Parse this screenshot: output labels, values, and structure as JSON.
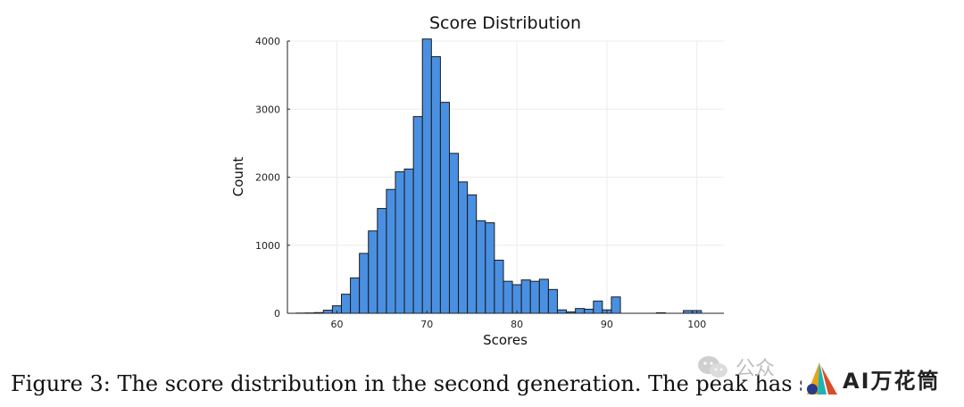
{
  "chart_data": {
    "type": "bar",
    "title": "Score Distribution",
    "xlabel": "Scores",
    "ylabel": "Count",
    "xlim": [
      54.5,
      103
    ],
    "ylim": [
      0,
      4000
    ],
    "xticks": [
      60,
      70,
      80,
      90,
      100
    ],
    "yticks": [
      0,
      1000,
      2000,
      3000,
      4000
    ],
    "grid": true,
    "bar_color": "#4a90e2",
    "x": [
      56,
      57,
      58,
      59,
      60,
      61,
      62,
      63,
      64,
      65,
      66,
      67,
      68,
      69,
      70,
      71,
      72,
      73,
      74,
      75,
      76,
      77,
      78,
      79,
      80,
      81,
      82,
      83,
      84,
      85,
      86,
      87,
      88,
      89,
      90,
      91,
      92,
      93,
      94,
      95,
      96,
      97,
      98,
      99,
      100
    ],
    "values": [
      3,
      5,
      10,
      45,
      110,
      280,
      520,
      880,
      1210,
      1540,
      1820,
      2080,
      2120,
      2890,
      4030,
      3770,
      3100,
      2350,
      1930,
      1740,
      1360,
      1330,
      780,
      470,
      420,
      490,
      470,
      500,
      350,
      50,
      20,
      70,
      60,
      180,
      50,
      240,
      0,
      0,
      0,
      0,
      8,
      0,
      0,
      40,
      40
    ]
  },
  "caption": "Figure 3: The score distribution in the second generation. The peak has shifte",
  "watermark": {
    "wechat_icon": "wechat-icon",
    "text": "公众"
  },
  "logo": {
    "text": "AI万花筒",
    "colors": [
      "#e8a317",
      "#1fb3b3",
      "#d94c2b"
    ]
  }
}
